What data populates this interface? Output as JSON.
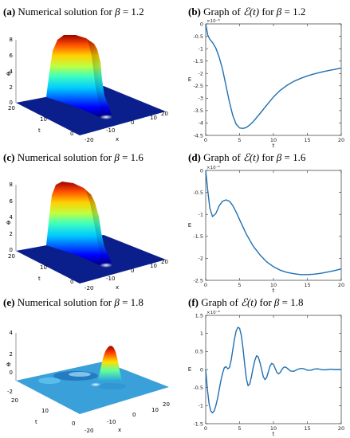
{
  "captions": [
    {
      "letter": "(a)",
      "text": "Numerical solution for ",
      "beta": "β",
      "eq": " = 1.2"
    },
    {
      "letter": "(b)",
      "text": "Graph of ",
      "script": "ℰ(t)",
      "mid": " for ",
      "beta": "β",
      "eq": " = 1.2"
    },
    {
      "letter": "(c)",
      "text": "Numerical solution for ",
      "beta": "β",
      "eq": " = 1.6"
    },
    {
      "letter": "(d)",
      "text": "Graph of ",
      "script": "ℰ(t)",
      "mid": " for ",
      "beta": "β",
      "eq": " = 1.6"
    },
    {
      "letter": "(e)",
      "text": "Numerical solution for ",
      "beta": "β",
      "eq": " = 1.8"
    },
    {
      "letter": "(f)",
      "text": "Graph of ",
      "script": "ℰ(t)",
      "mid": " for ",
      "beta": "β",
      "eq": " = 1.8"
    }
  ],
  "surfaces": [
    {
      "zlabel": "Φ",
      "tlabel": "t",
      "xlabel": "x",
      "zticks": [
        "8",
        "6",
        "4",
        "2",
        "0"
      ],
      "tticks": [
        "20",
        "10",
        "0"
      ],
      "xticks": [
        "-20",
        "-10",
        "0",
        "10",
        "20"
      ]
    },
    {
      "zlabel": "Φ",
      "tlabel": "t",
      "xlabel": "x",
      "zticks": [
        "8",
        "6",
        "4",
        "2",
        "0"
      ],
      "tticks": [
        "20",
        "10",
        "0"
      ],
      "xticks": [
        "-20",
        "-10",
        "0",
        "10",
        "20"
      ]
    },
    {
      "zlabel": "Φ",
      "tlabel": "t",
      "xlabel": "x",
      "zticks": [
        "4",
        "2",
        "0",
        "-2"
      ],
      "tticks": [
        "20",
        "10",
        "0"
      ],
      "xticks": [
        "-20",
        "-10",
        "0",
        "10",
        "20"
      ]
    }
  ],
  "chart_data": [
    {
      "type": "line",
      "ylabel": "E",
      "xlabel": "t",
      "exponent": "×10⁻⁸",
      "xlim": [
        0,
        20
      ],
      "ylim": [
        -4.5,
        0
      ],
      "xticks": [
        0,
        5,
        10,
        15,
        20
      ],
      "yticks": [
        0,
        -0.5,
        -1,
        -1.5,
        -2,
        -2.5,
        -3,
        -3.5,
        -4,
        -4.5
      ],
      "ytick_labels": [
        "0",
        "-0.5",
        "-1",
        "-1.5",
        "-2",
        "-2.5",
        "-3",
        "-3.5",
        "-4",
        "-4.5"
      ],
      "color": "#1f6fb2",
      "series": [
        {
          "x": [
            0,
            0.3,
            0.6,
            1.0,
            1.5,
            2.0,
            2.5,
            3.0,
            3.5,
            4.0,
            4.5,
            5.0,
            5.5,
            6.0,
            6.5,
            7.0,
            8.0,
            9.0,
            10.0,
            11.0,
            12.0,
            13.0,
            14.0,
            15.0,
            16.0,
            17.0,
            18.0,
            19.0,
            20.0
          ],
          "y": [
            0,
            -0.45,
            -0.62,
            -0.75,
            -0.98,
            -1.35,
            -1.85,
            -2.5,
            -3.15,
            -3.7,
            -4.05,
            -4.2,
            -4.22,
            -4.18,
            -4.08,
            -3.95,
            -3.62,
            -3.28,
            -2.95,
            -2.68,
            -2.48,
            -2.32,
            -2.2,
            -2.1,
            -2.02,
            -1.95,
            -1.89,
            -1.84,
            -1.78
          ]
        }
      ]
    },
    {
      "type": "line",
      "ylabel": "E",
      "xlabel": "t",
      "exponent": "×10⁻⁸",
      "xlim": [
        0,
        20
      ],
      "ylim": [
        -2.5,
        0
      ],
      "xticks": [
        0,
        5,
        10,
        15,
        20
      ],
      "yticks": [
        0,
        -0.5,
        -1,
        -1.5,
        -2,
        -2.5
      ],
      "ytick_labels": [
        "0",
        "-0.5",
        "-1",
        "-1.5",
        "-2",
        "-2.5"
      ],
      "color": "#1f6fb2",
      "series": [
        {
          "x": [
            0,
            0.3,
            0.6,
            1.0,
            1.5,
            2.0,
            2.5,
            3.0,
            3.5,
            4.0,
            4.5,
            5.0,
            6.0,
            7.0,
            8.0,
            9.0,
            10.0,
            11.0,
            12.0,
            13.0,
            14.0,
            15.0,
            16.0,
            17.0,
            18.0,
            19.0,
            20.0
          ],
          "y": [
            0,
            -0.45,
            -0.85,
            -1.05,
            -0.98,
            -0.8,
            -0.7,
            -0.67,
            -0.7,
            -0.8,
            -0.95,
            -1.12,
            -1.45,
            -1.72,
            -1.92,
            -2.08,
            -2.19,
            -2.27,
            -2.32,
            -2.35,
            -2.37,
            -2.37,
            -2.36,
            -2.34,
            -2.31,
            -2.28,
            -2.24
          ]
        }
      ]
    },
    {
      "type": "line",
      "ylabel": "E",
      "xlabel": "t",
      "exponent": "×10⁻⁸",
      "xlim": [
        0,
        20
      ],
      "ylim": [
        -1.5,
        1.5
      ],
      "xticks": [
        0,
        5,
        10,
        15,
        20
      ],
      "yticks": [
        1.5,
        1,
        0.5,
        0,
        -0.5,
        -1,
        -1.5
      ],
      "ytick_labels": [
        "1.5",
        "1",
        "0.5",
        "0",
        "-0.5",
        "-1",
        "-1.5"
      ],
      "color": "#1f6fb2",
      "series": [
        {
          "x": [
            0,
            0.25,
            0.5,
            0.75,
            1.0,
            1.25,
            1.5,
            1.75,
            2.0,
            2.25,
            2.5,
            2.75,
            3.0,
            3.25,
            3.5,
            3.75,
            4.0,
            4.25,
            4.5,
            4.75,
            5.0,
            5.25,
            5.5,
            5.75,
            6.0,
            6.25,
            6.5,
            6.75,
            7.0,
            7.25,
            7.5,
            7.75,
            8.0,
            8.25,
            8.5,
            8.75,
            9.0,
            9.25,
            9.5,
            9.75,
            10.0,
            10.25,
            10.5,
            10.75,
            11.0,
            11.25,
            11.5,
            11.75,
            12.0,
            12.5,
            13.0,
            13.5,
            14.0,
            14.5,
            15.0,
            15.5,
            16.0,
            16.5,
            17.0,
            17.5,
            18.0,
            18.5,
            19.0,
            19.5,
            20.0
          ],
          "y": [
            0,
            -0.55,
            -0.95,
            -1.15,
            -1.2,
            -1.15,
            -1.0,
            -0.8,
            -0.55,
            -0.3,
            -0.1,
            0.05,
            0.08,
            0.02,
            0.05,
            0.25,
            0.55,
            0.85,
            1.07,
            1.17,
            1.14,
            0.95,
            0.6,
            0.15,
            -0.25,
            -0.45,
            -0.4,
            -0.2,
            0.05,
            0.25,
            0.38,
            0.35,
            0.2,
            0.0,
            -0.2,
            -0.28,
            -0.22,
            -0.06,
            0.1,
            0.17,
            0.14,
            0.03,
            -0.08,
            -0.12,
            -0.08,
            0.0,
            0.06,
            0.07,
            0.04,
            -0.04,
            -0.05,
            0.0,
            0.03,
            0.02,
            -0.02,
            -0.02,
            0.01,
            0.02,
            0.0,
            -0.01,
            0.0,
            0.01,
            0.0,
            0.0,
            0.0
          ]
        }
      ]
    }
  ]
}
